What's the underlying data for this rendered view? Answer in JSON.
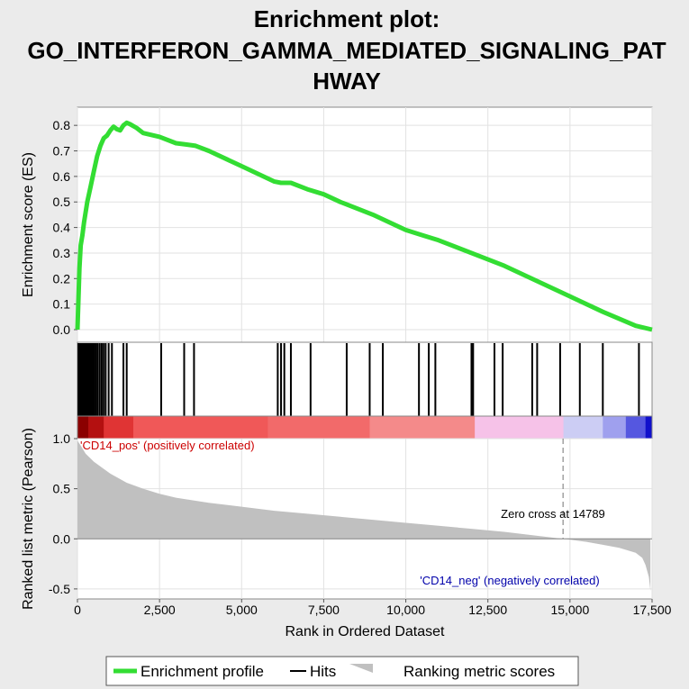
{
  "chart_data": {
    "type": "line",
    "title_lines": [
      "Enrichment plot:",
      "GO_INTERFERON_GAMMA_MEDIATED_SIGNALING_PAT",
      "HWAY"
    ],
    "xlabel": "Rank in Ordered Dataset",
    "xlim": [
      0,
      17500
    ],
    "x_ticks": [
      0,
      2500,
      5000,
      7500,
      10000,
      12500,
      15000,
      17500
    ],
    "x_tick_labels": [
      "0",
      "2,500",
      "5,000",
      "7,500",
      "10,000",
      "12,500",
      "15,000",
      "17,500"
    ],
    "es_panel": {
      "ylabel": "Enrichment score (ES)",
      "ylim": [
        0.0,
        0.85
      ],
      "y_ticks": [
        0.0,
        0.1,
        0.2,
        0.3,
        0.4,
        0.5,
        0.6,
        0.7,
        0.8
      ],
      "y_tick_labels": [
        "0.0",
        "0.1",
        "0.2",
        "0.3",
        "0.4",
        "0.5",
        "0.6",
        "0.7",
        "0.8"
      ],
      "grid": true,
      "series": [
        {
          "name": "Enrichment profile",
          "color": "#33dd33",
          "x": [
            0,
            30,
            60,
            100,
            150,
            200,
            300,
            400,
            500,
            600,
            700,
            800,
            900,
            1000,
            1100,
            1200,
            1300,
            1400,
            1500,
            1600,
            1800,
            2000,
            2500,
            3000,
            3300,
            3600,
            4000,
            5000,
            6000,
            6200,
            6500,
            7000,
            7500,
            8000,
            9000,
            10000,
            10500,
            11000,
            12000,
            13000,
            14000,
            15000,
            16000,
            17000,
            17500
          ],
          "y": [
            0.0,
            0.12,
            0.24,
            0.33,
            0.37,
            0.42,
            0.5,
            0.56,
            0.62,
            0.68,
            0.72,
            0.75,
            0.76,
            0.78,
            0.795,
            0.785,
            0.78,
            0.8,
            0.81,
            0.805,
            0.79,
            0.77,
            0.755,
            0.73,
            0.725,
            0.72,
            0.7,
            0.64,
            0.58,
            0.575,
            0.575,
            0.55,
            0.53,
            0.5,
            0.45,
            0.39,
            0.37,
            0.35,
            0.3,
            0.25,
            0.19,
            0.13,
            0.07,
            0.015,
            0.0
          ]
        }
      ]
    },
    "hits": {
      "name": "Hits",
      "color": "#000000",
      "x": [
        30,
        70,
        110,
        150,
        190,
        230,
        270,
        310,
        350,
        390,
        430,
        470,
        520,
        570,
        620,
        680,
        740,
        800,
        860,
        950,
        1050,
        1400,
        1500,
        2550,
        3250,
        3550,
        6100,
        6200,
        6300,
        6500,
        7100,
        8200,
        8900,
        9300,
        10400,
        10700,
        10900,
        12000,
        12050,
        12700,
        12950,
        13850,
        14000,
        14700,
        15300,
        16000,
        17100
      ]
    },
    "metric_panel": {
      "ylabel": "Ranked list metric (Pearson)",
      "ylim": [
        -0.6,
        1.0
      ],
      "y_ticks": [
        -0.5,
        0.0,
        0.5,
        1.0
      ],
      "y_tick_labels": [
        "-0.5",
        "0.0",
        "0.5",
        "1.0"
      ],
      "grid": true,
      "series": [
        {
          "name": "Ranking metric scores",
          "color": "#c0c0c0",
          "x": [
            0,
            100,
            250,
            500,
            750,
            1000,
            1500,
            2000,
            2500,
            3000,
            4000,
            5000,
            6000,
            7000,
            8000,
            9000,
            10000,
            11000,
            12000,
            13000,
            14000,
            14789,
            15500,
            16000,
            16500,
            17000,
            17200,
            17300,
            17400,
            17450
          ],
          "y": [
            0.98,
            0.93,
            0.85,
            0.77,
            0.71,
            0.65,
            0.56,
            0.5,
            0.45,
            0.41,
            0.36,
            0.32,
            0.28,
            0.25,
            0.22,
            0.19,
            0.16,
            0.13,
            0.1,
            0.07,
            0.03,
            0.0,
            -0.03,
            -0.06,
            -0.09,
            -0.14,
            -0.19,
            -0.26,
            -0.38,
            -0.52
          ]
        }
      ],
      "zero_cross_x": 14789,
      "annotations": {
        "pos": "'CD14_pos' (positively correlated)",
        "neg": "'CD14_neg' (negatively correlated)",
        "zero_cross": "Zero cross at 14789"
      },
      "annotation_colors": {
        "pos": "#cc0000",
        "neg": "#0000aa",
        "zero_cross": "#000000"
      }
    },
    "heat_bar": {
      "segments": [
        {
          "x0": 0,
          "x1": 330,
          "color": "#8b0000"
        },
        {
          "x0": 330,
          "x1": 800,
          "color": "#b41010"
        },
        {
          "x0": 800,
          "x1": 1700,
          "color": "#e03434"
        },
        {
          "x0": 1700,
          "x1": 5800,
          "color": "#f05858"
        },
        {
          "x0": 5800,
          "x1": 8900,
          "color": "#f26a6a"
        },
        {
          "x0": 8900,
          "x1": 12100,
          "color": "#f48a8a"
        },
        {
          "x0": 12100,
          "x1": 14800,
          "color": "#f6c2e8"
        },
        {
          "x0": 14800,
          "x1": 16000,
          "color": "#cccdf4"
        },
        {
          "x0": 16000,
          "x1": 16700,
          "color": "#9fa0ee"
        },
        {
          "x0": 16700,
          "x1": 17300,
          "color": "#5557e0"
        },
        {
          "x0": 17300,
          "x1": 17500,
          "color": "#1010cc"
        }
      ]
    },
    "legend": {
      "placement": "bottom",
      "items": [
        {
          "label": "Enrichment profile",
          "color": "#33dd33",
          "style": "line-thick"
        },
        {
          "label": "Hits",
          "color": "#000000",
          "style": "line"
        },
        {
          "label": "Ranking metric scores",
          "color": "#c0c0c0",
          "style": "area"
        }
      ]
    }
  }
}
